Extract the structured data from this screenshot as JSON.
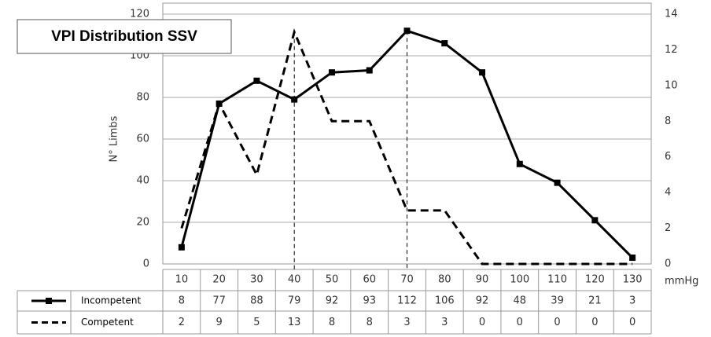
{
  "chart_data": {
    "type": "line",
    "title": "VPI Distribution SSV",
    "ylabel": "N° Limbs",
    "xlabel": "mmHg",
    "categories": [
      "10",
      "20",
      "30",
      "40",
      "50",
      "60",
      "70",
      "80",
      "90",
      "100",
      "110",
      "120",
      "130"
    ],
    "series": [
      {
        "name": "Incompetent",
        "color": "#000000",
        "dashed": false,
        "marker": "square",
        "axis": "y",
        "values": [
          8,
          77,
          88,
          79,
          92,
          93,
          112,
          106,
          92,
          48,
          39,
          21,
          3
        ]
      },
      {
        "name": "Competent",
        "color": "#000000",
        "dashed": true,
        "marker": "none",
        "axis": "y2",
        "values": [
          2,
          9,
          5,
          13,
          8,
          8,
          3,
          3,
          0,
          0,
          0,
          0,
          0
        ]
      }
    ],
    "ylim": [
      0,
      120
    ],
    "yticks": [
      0,
      20,
      40,
      60,
      80,
      100,
      120
    ],
    "y2lim": [
      0,
      14
    ],
    "y2ticks": [
      0,
      2,
      4,
      6,
      8,
      10,
      12,
      14
    ],
    "grid": true,
    "data_table": true
  }
}
